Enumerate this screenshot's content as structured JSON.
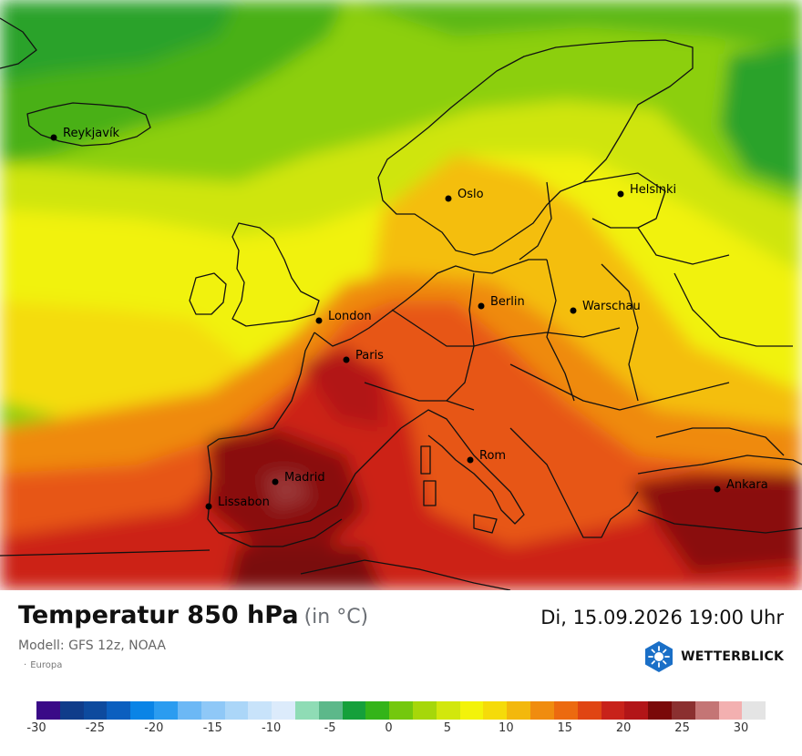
{
  "map": {
    "cities": [
      {
        "name": "Reykjavík",
        "id": "reykjavik"
      },
      {
        "name": "Oslo",
        "id": "oslo"
      },
      {
        "name": "Helsinki",
        "id": "helsinki"
      },
      {
        "name": "Berlin",
        "id": "berlin"
      },
      {
        "name": "Warschau",
        "id": "warschau"
      },
      {
        "name": "London",
        "id": "london"
      },
      {
        "name": "Paris",
        "id": "paris"
      },
      {
        "name": "Rom",
        "id": "rom"
      },
      {
        "name": "Madrid",
        "id": "madrid"
      },
      {
        "name": "Lissabon",
        "id": "lissabon"
      },
      {
        "name": "Ankara",
        "id": "ankara"
      }
    ]
  },
  "header": {
    "title": "Temperatur 850 hPa",
    "unit": "(in °C)",
    "datetime": "Di, 15.09.2026 19:00 Uhr",
    "model": "Modell: GFS 12z, NOAA",
    "region": "Europa",
    "brand": "WETTERBLICK"
  },
  "legend": {
    "colors": [
      "#3a0a87",
      "#0f3c8a",
      "#0d4a9e",
      "#0b5fbf",
      "#0a84e6",
      "#2b9cf0",
      "#6cb8f5",
      "#8fc8f7",
      "#abd6f8",
      "#c8e3fa",
      "#dcebfb",
      "#8fdcb5",
      "#5cb88a",
      "#15a03b",
      "#34b419",
      "#74c80d",
      "#a6d70a",
      "#d2e70c",
      "#f3f30a",
      "#f5db0a",
      "#f3b80c",
      "#f08c0f",
      "#ec6a10",
      "#e04513",
      "#c8221a",
      "#b21518",
      "#7a0909",
      "#8b3030",
      "#c47575",
      "#f3b0b0",
      "#e4e4e4"
    ],
    "ticks": [
      "-30",
      "-25",
      "-20",
      "-15",
      "-10",
      "-5",
      "0",
      "5",
      "10",
      "15",
      "20",
      "25",
      "30"
    ]
  }
}
